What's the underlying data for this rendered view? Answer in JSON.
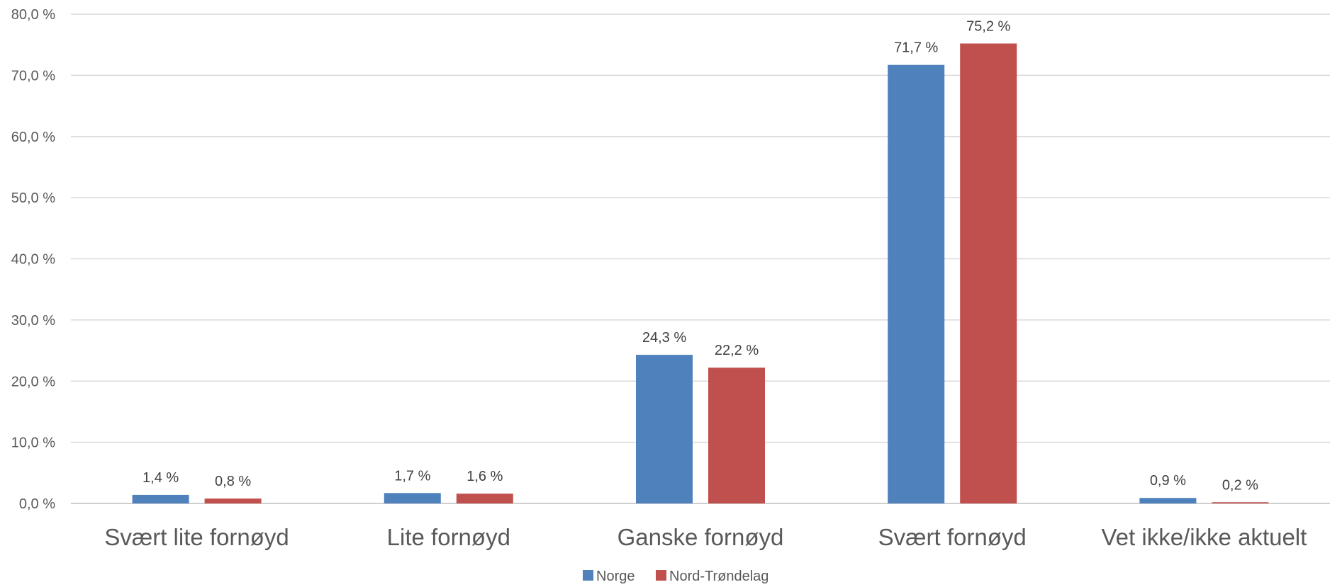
{
  "chart_data": {
    "type": "bar",
    "title": "",
    "xlabel": "",
    "ylabel": "",
    "categories": [
      "Svært lite fornøyd",
      "Lite fornøyd",
      "Ganske fornøyd",
      "Svært fornøyd",
      "Vet ikke/ikke aktuelt"
    ],
    "series": [
      {
        "name": "Norge",
        "color": "#4F81BD",
        "values": [
          1.4,
          1.7,
          24.3,
          71.7,
          0.9
        ],
        "labels": [
          "1,4 %",
          "1,7 %",
          "24,3 %",
          "71,7 %",
          "0,9 %"
        ]
      },
      {
        "name": "Nord-Trøndelag",
        "color": "#C0504D",
        "values": [
          0.8,
          1.6,
          22.2,
          75.2,
          0.2
        ],
        "labels": [
          "0,8 %",
          "1,6 %",
          "22,2 %",
          "75,2 %",
          "0,2 %"
        ]
      }
    ],
    "ylim": [
      0,
      80
    ],
    "yticks": [
      0,
      10,
      20,
      30,
      40,
      50,
      60,
      70,
      80
    ],
    "ytick_labels": [
      "0,0 %",
      "10,0 %",
      "20,0 %",
      "30,0 %",
      "40,0 %",
      "50,0 %",
      "60,0 %",
      "70,0 %",
      "80,0 %"
    ],
    "grid": true,
    "legend_position": "bottom"
  }
}
